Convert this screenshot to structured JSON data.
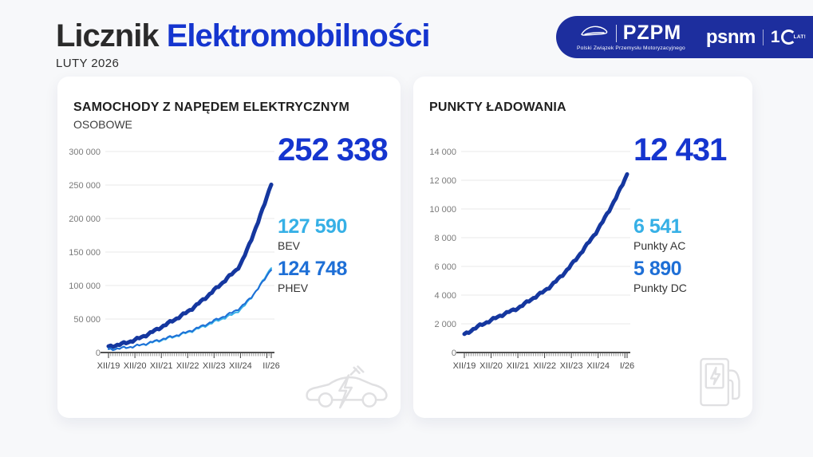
{
  "page": {
    "title_dark": "Licznik",
    "title_accent": "Elektromobilności",
    "subtitle": "LUTY 2026"
  },
  "logos": {
    "pzpm": {
      "name": "PZPM",
      "tagline": "Polski Związek Przemysłu Motoryzacyjnego"
    },
    "psnm": {
      "name": "psnm",
      "years_number": "1",
      "years_label": "LAT!"
    }
  },
  "colors": {
    "accent_blue": "#1535cf",
    "navy_line": "#15379f",
    "light_blue": "#36b0e6",
    "mid_blue": "#1e6fd6",
    "logo_bar": "#1d2e9e",
    "icon_gray": "#e0e0e2"
  },
  "cards": [
    {
      "title": "SAMOCHODY Z NAPĘDEM ELEKTRYCZNYM",
      "subtitle": "OSOBOWE",
      "total": "252 338",
      "stats": [
        {
          "value": "127 590",
          "label": "BEV",
          "color": "#36b0e6"
        },
        {
          "value": "124 748",
          "label": "PHEV",
          "color": "#1e6fd6"
        }
      ]
    },
    {
      "title": "PUNKTY ŁADOWANIA",
      "subtitle": "",
      "total": "12 431",
      "stats": [
        {
          "value": "6 541",
          "label": "Punkty AC",
          "color": "#36b0e6"
        },
        {
          "value": "5 890",
          "label": "Punkty DC",
          "color": "#1e6fd6"
        }
      ]
    }
  ],
  "chart_data": [
    {
      "type": "line",
      "title": "SAMOCHODY Z NAPĘDEM ELEKTRYCZNYM (OSOBOWE)",
      "xlabel": "",
      "ylabel": "",
      "ylim": [
        0,
        300000
      ],
      "yticks": [
        0,
        50000,
        100000,
        150000,
        200000,
        250000,
        300000
      ],
      "ytick_labels": [
        "0",
        "50 000",
        "100 000",
        "150 000",
        "200 000",
        "250 000",
        "300 000"
      ],
      "total_months": 74,
      "x_tick_months": [
        0,
        12,
        24,
        36,
        48,
        60,
        74
      ],
      "x_tick_labels": [
        "XII/19",
        "XII/20",
        "XII/21",
        "XII/22",
        "XII/23",
        "XII/24",
        "II/26"
      ],
      "grid": true,
      "legend": "none",
      "series": [
        {
          "name": "EV razem",
          "color": "#15379f",
          "width": 5,
          "anchors": [
            [
              0,
              8600
            ],
            [
              6,
              12800
            ],
            [
              12,
              18900
            ],
            [
              18,
              27500
            ],
            [
              24,
              38000
            ],
            [
              30,
              49000
            ],
            [
              36,
              61000
            ],
            [
              42,
              76000
            ],
            [
              48,
              93000
            ],
            [
              54,
              111000
            ],
            [
              60,
              132000
            ],
            [
              66,
              178000
            ],
            [
              70,
              213000
            ],
            [
              74,
              252338
            ]
          ]
        },
        {
          "name": "BEV",
          "color": "#36b0e6",
          "width": 2,
          "anchors": [
            [
              0,
              4500
            ],
            [
              12,
              9400
            ],
            [
              24,
              18500
            ],
            [
              36,
              30000
            ],
            [
              48,
              45500
            ],
            [
              60,
              64500
            ],
            [
              68,
              96000
            ],
            [
              74,
              127590
            ]
          ]
        },
        {
          "name": "PHEV",
          "color": "#1e6fd6",
          "width": 2,
          "anchors": [
            [
              0,
              4100
            ],
            [
              12,
              9500
            ],
            [
              24,
              19500
            ],
            [
              36,
              31000
            ],
            [
              48,
              47500
            ],
            [
              60,
              67500
            ],
            [
              68,
              95500
            ],
            [
              74,
              124748
            ]
          ]
        }
      ],
      "annotations": {
        "total": 252338,
        "BEV": 127590,
        "PHEV": 124748
      }
    },
    {
      "type": "line",
      "title": "PUNKTY ŁADOWANIA",
      "xlabel": "",
      "ylabel": "",
      "ylim": [
        0,
        14000
      ],
      "yticks": [
        0,
        2000,
        4000,
        6000,
        8000,
        10000,
        12000,
        14000
      ],
      "ytick_labels": [
        "0",
        "2 000",
        "4 000",
        "6 000",
        "8 000",
        "10 000",
        "12 000",
        "14 000"
      ],
      "total_months": 73,
      "x_tick_months": [
        0,
        12,
        24,
        36,
        48,
        60,
        73
      ],
      "x_tick_labels": [
        "XII/19",
        "XII/20",
        "XII/21",
        "XII/22",
        "XII/23",
        "XII/24",
        "I/26"
      ],
      "grid": true,
      "legend": "none",
      "series": [
        {
          "name": "Punkty ładowania razem",
          "color": "#15379f",
          "width": 5,
          "anchors": [
            [
              0,
              1250
            ],
            [
              6,
              1800
            ],
            [
              12,
              2250
            ],
            [
              18,
              2700
            ],
            [
              24,
              3100
            ],
            [
              30,
              3700
            ],
            [
              36,
              4300
            ],
            [
              42,
              5100
            ],
            [
              48,
              6100
            ],
            [
              54,
              7300
            ],
            [
              60,
              8600
            ],
            [
              66,
              10200
            ],
            [
              70,
              11400
            ],
            [
              73,
              12431
            ]
          ]
        }
      ],
      "annotations": {
        "total": 12431,
        "punkty_AC": 6541,
        "punkty_DC": 5890
      }
    }
  ]
}
